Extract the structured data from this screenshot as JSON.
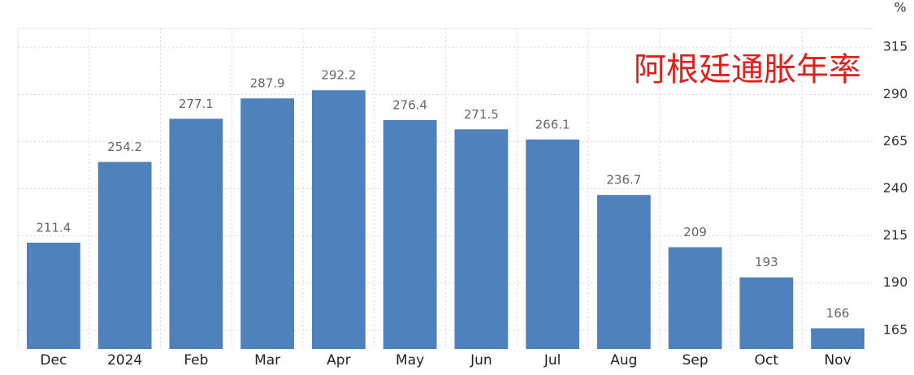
{
  "chart_data": {
    "type": "bar",
    "title": "阿根廷通胀年率",
    "y_unit": "%",
    "categories": [
      "Dec",
      "2024",
      "Feb",
      "Mar",
      "Apr",
      "May",
      "Jun",
      "Jul",
      "Aug",
      "Sep",
      "Oct",
      "Nov"
    ],
    "values": [
      211.4,
      254.2,
      277.1,
      287.9,
      292.2,
      276.4,
      271.5,
      266.1,
      236.7,
      209,
      193,
      166
    ],
    "value_labels": [
      "211.4",
      "254.2",
      "277.1",
      "287.9",
      "292.2",
      "276.4",
      "271.5",
      "266.1",
      "236.7",
      "209",
      "193",
      "166"
    ],
    "color": "#4f81bd",
    "ylim": [
      155,
      325
    ],
    "yticks": [
      165,
      190,
      215,
      240,
      265,
      290,
      315
    ],
    "grid": true
  }
}
